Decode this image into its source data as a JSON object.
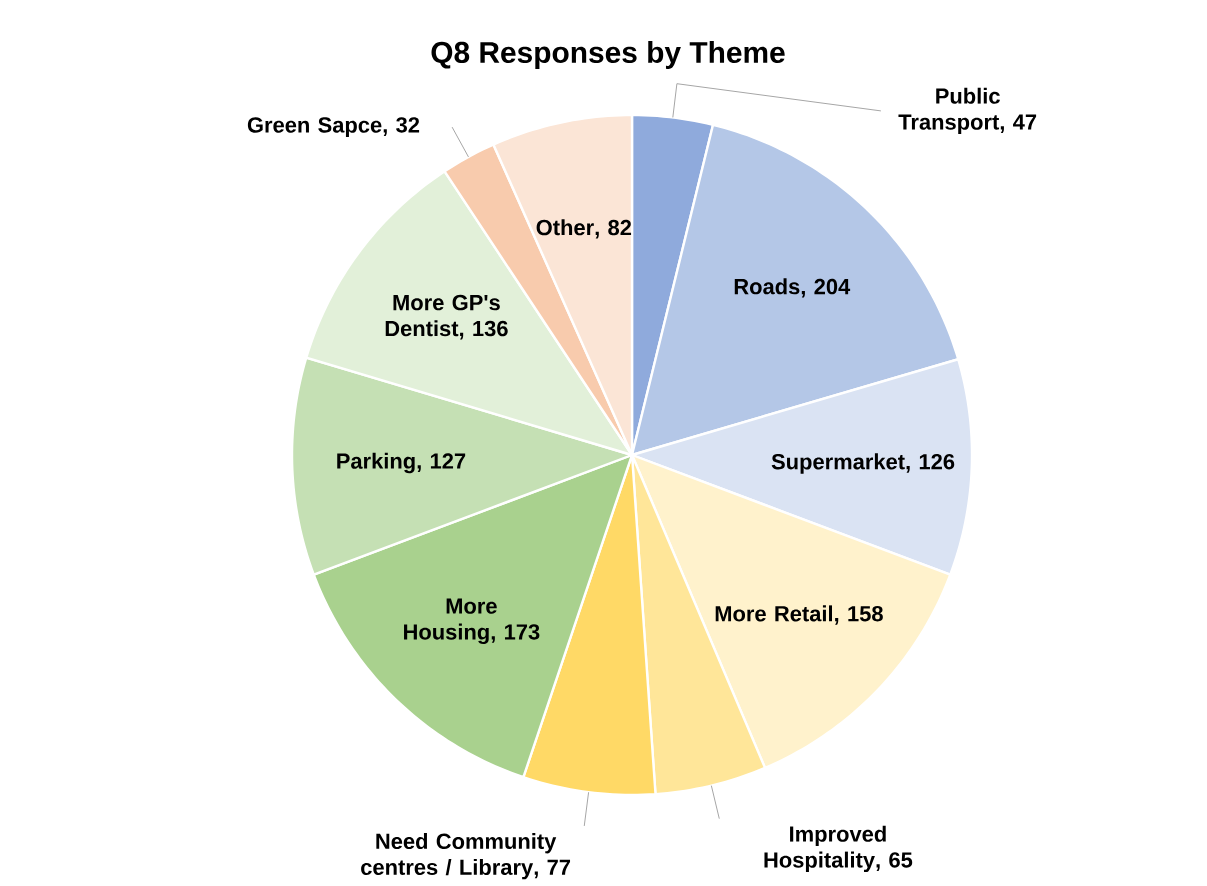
{
  "chart_data": {
    "type": "pie",
    "title": "Q8 Responses by Theme",
    "categories": [
      "Public Transport",
      "Roads",
      "Supermarket",
      "More Retail",
      "Improved Hospitality",
      "Need Community centres / Library",
      "More Housing",
      "Parking",
      "More GP's Dentist",
      "Green Sapce",
      "Other"
    ],
    "values": [
      47,
      204,
      126,
      158,
      65,
      77,
      173,
      127,
      136,
      32,
      82
    ],
    "colors": [
      "#8faadc",
      "#b4c7e7",
      "#dae3f3",
      "#fff2cc",
      "#ffe699",
      "#ffd966",
      "#a9d18e",
      "#c5e0b4",
      "#e2f0d9",
      "#f8cbad",
      "#fbe5d6"
    ],
    "value_labels": [
      ", 47",
      ", 204",
      ", 126",
      ", 158",
      ", 65",
      ", 77",
      ", 173",
      ", 127",
      ", 136",
      ", 32",
      ", 82"
    ]
  }
}
